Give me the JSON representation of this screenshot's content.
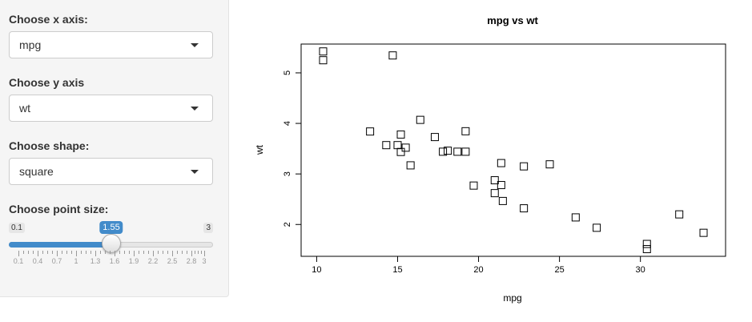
{
  "controls": {
    "x_axis": {
      "label": "Choose x axis:",
      "value": "mpg"
    },
    "y_axis": {
      "label": "Choose y axis",
      "value": "wt"
    },
    "shape": {
      "label": "Choose shape:",
      "value": "square"
    },
    "point_size": {
      "label": "Choose point size:",
      "min_label": "0.1",
      "max_label": "3",
      "value_label": "1.55",
      "min": 0.1,
      "max": 3,
      "value": 1.55,
      "tick_labels": [
        "0.1",
        "0.4",
        "0.7",
        "1",
        "1.3",
        "1.6",
        "1.9",
        "2.2",
        "2.5",
        "2.8",
        "3"
      ],
      "tick_values": [
        0.1,
        0.4,
        0.7,
        1.0,
        1.3,
        1.6,
        1.9,
        2.2,
        2.5,
        2.8,
        3.0
      ]
    }
  },
  "colors": {
    "slider_accent": "#428bca",
    "sidebar_bg": "#f5f5f5"
  },
  "chart_data": {
    "type": "scatter",
    "title": "mpg  vs  wt",
    "xlabel": "mpg",
    "ylabel": "wt",
    "marker": "square",
    "xlim": [
      10,
      34
    ],
    "ylim": [
      1.5,
      5.5
    ],
    "xticks": [
      10,
      15,
      20,
      25,
      30
    ],
    "xtick_labels": [
      "10",
      "15",
      "20",
      "25",
      "30"
    ],
    "yticks": [
      2,
      3,
      4,
      5
    ],
    "ytick_labels": [
      "2",
      "3",
      "4",
      "5"
    ],
    "points": [
      {
        "x": 21.0,
        "y": 2.62
      },
      {
        "x": 21.0,
        "y": 2.875
      },
      {
        "x": 22.8,
        "y": 2.32
      },
      {
        "x": 21.4,
        "y": 3.215
      },
      {
        "x": 18.7,
        "y": 3.44
      },
      {
        "x": 18.1,
        "y": 3.46
      },
      {
        "x": 14.3,
        "y": 3.57
      },
      {
        "x": 24.4,
        "y": 3.19
      },
      {
        "x": 22.8,
        "y": 3.15
      },
      {
        "x": 19.2,
        "y": 3.44
      },
      {
        "x": 17.8,
        "y": 3.44
      },
      {
        "x": 16.4,
        "y": 4.07
      },
      {
        "x": 17.3,
        "y": 3.73
      },
      {
        "x": 15.2,
        "y": 3.78
      },
      {
        "x": 10.4,
        "y": 5.25
      },
      {
        "x": 10.4,
        "y": 5.424
      },
      {
        "x": 14.7,
        "y": 5.345
      },
      {
        "x": 32.4,
        "y": 2.2
      },
      {
        "x": 30.4,
        "y": 1.615
      },
      {
        "x": 33.9,
        "y": 1.835
      },
      {
        "x": 21.5,
        "y": 2.465
      },
      {
        "x": 15.5,
        "y": 3.52
      },
      {
        "x": 15.2,
        "y": 3.435
      },
      {
        "x": 13.3,
        "y": 3.84
      },
      {
        "x": 19.2,
        "y": 3.845
      },
      {
        "x": 27.3,
        "y": 1.935
      },
      {
        "x": 26.0,
        "y": 2.14
      },
      {
        "x": 30.4,
        "y": 1.513
      },
      {
        "x": 15.8,
        "y": 3.17
      },
      {
        "x": 19.7,
        "y": 2.77
      },
      {
        "x": 15.0,
        "y": 3.57
      },
      {
        "x": 21.4,
        "y": 2.78
      }
    ]
  }
}
